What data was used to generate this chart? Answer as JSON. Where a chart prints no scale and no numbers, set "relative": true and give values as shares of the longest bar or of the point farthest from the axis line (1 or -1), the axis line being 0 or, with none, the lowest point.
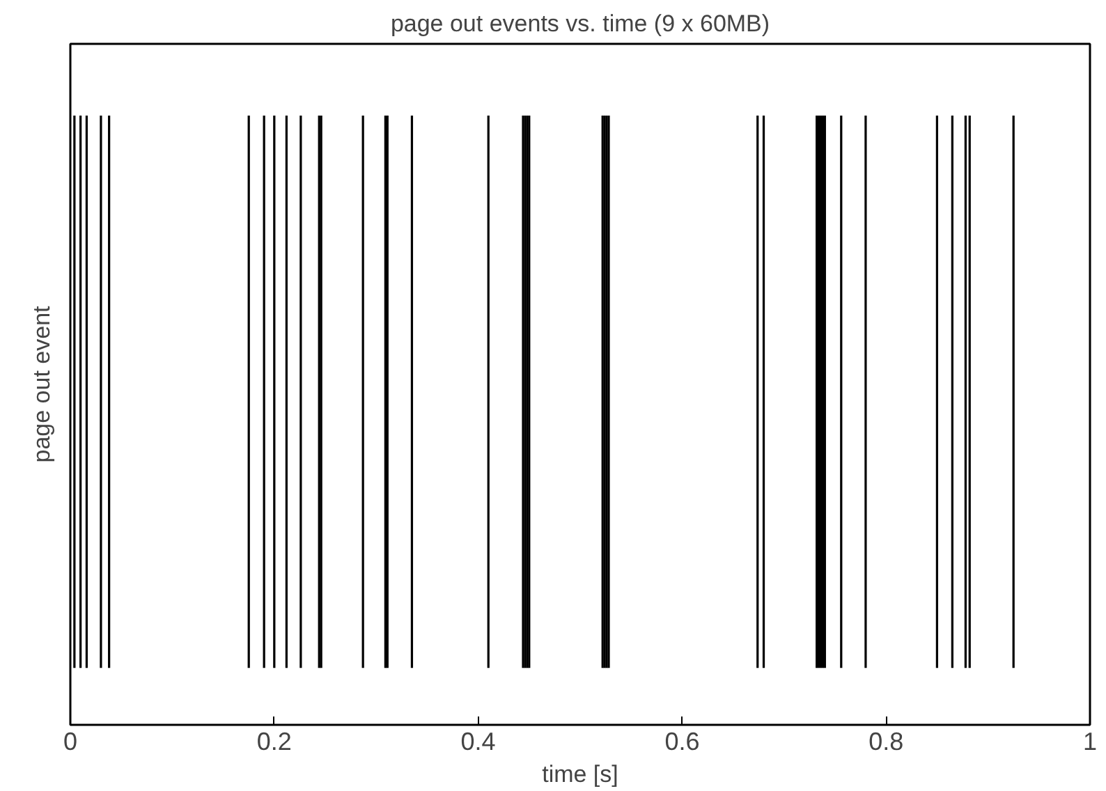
{
  "chart_data": {
    "type": "bar",
    "title": "page out events vs. time (9 x 60MB)",
    "xlabel": "time [s]",
    "ylabel": "page out event",
    "relative": true,
    "color": "#000000",
    "x": [
      0.004,
      0.01,
      0.016,
      0.03,
      0.038,
      0.175,
      0.19,
      0.2,
      0.212,
      0.226,
      0.244,
      0.246,
      0.287,
      0.309,
      0.311,
      0.335,
      0.41,
      0.444,
      0.446,
      0.448,
      0.45,
      0.522,
      0.524,
      0.526,
      0.528,
      0.674,
      0.68,
      0.732,
      0.734,
      0.736,
      0.738,
      0.74,
      0.756,
      0.78,
      0.85,
      0.865,
      0.878,
      0.882,
      0.925
    ],
    "values": [
      1,
      1,
      1,
      1,
      1,
      1,
      1,
      1,
      1,
      1,
      1,
      1,
      1,
      1,
      1,
      1,
      1,
      1,
      1,
      1,
      1,
      1,
      1,
      1,
      1,
      1,
      1,
      1,
      1,
      1,
      1,
      1,
      1,
      1,
      1,
      1,
      1,
      1,
      1
    ],
    "xlim": [
      0,
      1
    ],
    "xticks": [
      0,
      0.2,
      0.4,
      0.6,
      0.8,
      1
    ],
    "grid": false
  }
}
